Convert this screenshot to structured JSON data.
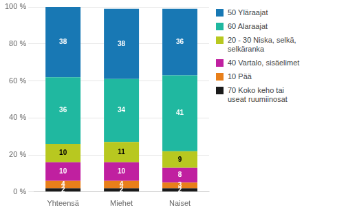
{
  "chart_data": {
    "type": "bar",
    "stacked": true,
    "categories": [
      "Yhteensä",
      "Miehet",
      "Naiset"
    ],
    "series": [
      {
        "name": "70 Koko keho tai\nuseat ruumiinosat",
        "values": [
          2,
          2,
          2
        ],
        "color": "#1a1a1a"
      },
      {
        "name": "10 Pää",
        "values": [
          4,
          4,
          3
        ],
        "color": "#e87f1a"
      },
      {
        "name": "40 Vartalo, sisäelimet",
        "values": [
          10,
          10,
          8
        ],
        "color": "#c020a0"
      },
      {
        "name": "20 - 30 Niska, selkä,\nselkäranka",
        "values": [
          10,
          11,
          9
        ],
        "color": "#b8c820"
      },
      {
        "name": "60 Alaraajat",
        "values": [
          36,
          34,
          41
        ],
        "color": "#20b8a0"
      },
      {
        "name": "50 Yläraajat",
        "values": [
          38,
          38,
          36
        ],
        "color": "#1878b4"
      }
    ],
    "ylim": [
      0,
      100
    ],
    "yticks": [
      {
        "value": 0,
        "label": "0 %"
      },
      {
        "value": 20,
        "label": "20 %"
      },
      {
        "value": 40,
        "label": "40 %"
      },
      {
        "value": 60,
        "label": "60 %"
      },
      {
        "value": 80,
        "label": "80 %"
      },
      {
        "value": 100,
        "label": "100 %"
      }
    ],
    "grid": true,
    "data_labels": true,
    "legend": "right"
  }
}
